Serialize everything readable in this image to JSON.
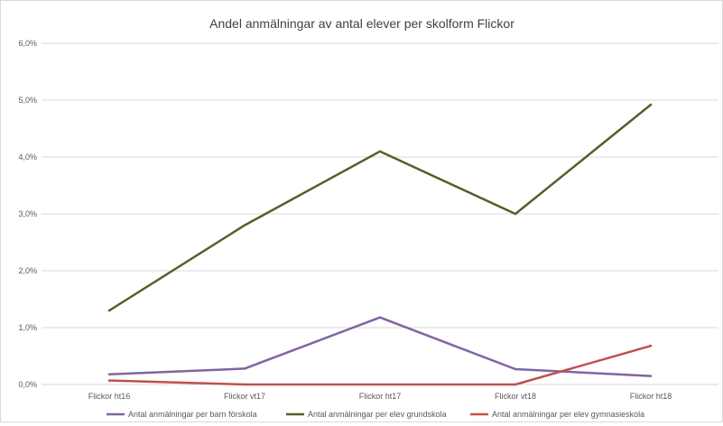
{
  "chart_data": {
    "type": "line",
    "title": "Andel  anmälningar av antal elever per skolform Flickor",
    "xlabel": "",
    "ylabel": "",
    "categories": [
      "Flickor ht16",
      "Flickor vt17",
      "Flickor ht17",
      "Flickor vt18",
      "Flickor ht18"
    ],
    "ylim": [
      0,
      6
    ],
    "yticks": [
      0,
      1,
      2,
      3,
      4,
      5,
      6
    ],
    "ytick_labels": [
      "0,0%",
      "1,0%",
      "2,0%",
      "3,0%",
      "4,0%",
      "5,0%",
      "6,0%"
    ],
    "grid": true,
    "legend_position": "bottom",
    "series": [
      {
        "name": "Antal anmälningar per barn förskola",
        "color": "#8064a2",
        "values": [
          0.18,
          0.28,
          1.18,
          0.27,
          0.15
        ]
      },
      {
        "name": "Antal anmälningar per elev grundskola",
        "color": "#4f6228",
        "values": [
          1.3,
          2.8,
          4.1,
          3.0,
          4.92
        ]
      },
      {
        "name": "Antal anmälningar per elev gymnasieskola",
        "color": "#c0504d",
        "values": [
          0.07,
          0.0,
          0.0,
          0.0,
          0.68
        ]
      }
    ]
  }
}
